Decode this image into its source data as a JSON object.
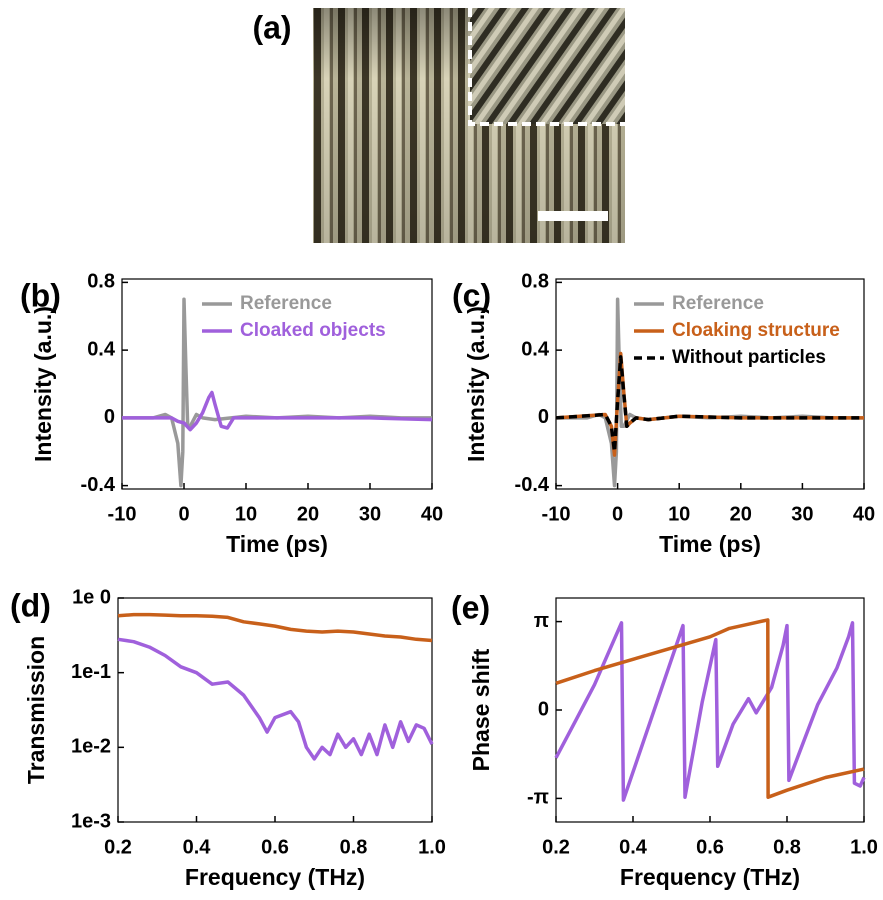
{
  "image_panel": {
    "label": "(a)"
  },
  "chart_data": [
    {
      "type": "line",
      "panel_label": "(b)",
      "xlabel": "Time (ps)",
      "ylabel": "Intensity (a.u.)",
      "xlim": [
        -10,
        40
      ],
      "xticks": [
        -10,
        0,
        10,
        20,
        30,
        40
      ],
      "ylim": [
        -0.42,
        0.82
      ],
      "yticks": [
        -0.4,
        0,
        0.4,
        0.8
      ],
      "legend": "upper right",
      "series": [
        {
          "name": "Reference",
          "color": "#999999",
          "x": [
            -10,
            -5,
            -3,
            -2,
            -1,
            -0.5,
            -0.2,
            0,
            0.3,
            0.6,
            1,
            2,
            3,
            5,
            10,
            15,
            20,
            25,
            30,
            35,
            40
          ],
          "values": [
            0,
            0,
            0.02,
            0,
            -0.15,
            -0.4,
            -0.2,
            0.7,
            0.3,
            -0.05,
            -0.05,
            0.02,
            0,
            -0.01,
            0.01,
            0,
            0.01,
            0,
            0.01,
            0,
            0
          ]
        },
        {
          "name": "Cloaked objects",
          "color": "#a060dc",
          "x": [
            -10,
            -2,
            -1,
            0,
            1,
            2,
            3,
            4,
            4.5,
            5,
            6,
            7,
            8,
            10,
            20,
            30,
            40
          ],
          "values": [
            0,
            0,
            -0.02,
            -0.03,
            -0.07,
            -0.03,
            0.03,
            0.12,
            0.15,
            0.08,
            -0.05,
            -0.06,
            0,
            0,
            0,
            0,
            -0.01
          ]
        }
      ]
    },
    {
      "type": "line",
      "panel_label": "(c)",
      "xlabel": "Time (ps)",
      "ylabel": "Intensity (a.u.)",
      "xlim": [
        -10,
        40
      ],
      "xticks": [
        -10,
        0,
        10,
        20,
        30,
        40
      ],
      "ylim": [
        -0.42,
        0.82
      ],
      "yticks": [
        -0.4,
        0,
        0.4,
        0.8
      ],
      "legend": "upper right",
      "series": [
        {
          "name": "Reference",
          "color": "#999999",
          "x": [
            -10,
            -5,
            -3,
            -2,
            -1,
            -0.5,
            -0.2,
            0,
            0.3,
            0.6,
            1,
            2,
            3,
            5,
            10,
            15,
            20,
            25,
            30,
            35,
            40
          ],
          "values": [
            0,
            0,
            0.02,
            0,
            -0.15,
            -0.4,
            -0.2,
            0.7,
            0.3,
            -0.05,
            -0.05,
            0.02,
            0,
            -0.01,
            0.01,
            0,
            0.01,
            0,
            0.01,
            0,
            0
          ]
        },
        {
          "name": "Cloaking structure",
          "color": "#c8601a",
          "x": [
            -10,
            -2,
            -1,
            -0.5,
            0,
            0.5,
            1,
            1.5,
            2,
            3,
            5,
            10,
            20,
            30,
            40
          ],
          "values": [
            0,
            0.02,
            -0.05,
            -0.22,
            0.1,
            0.38,
            0.15,
            -0.05,
            -0.03,
            0,
            -0.01,
            0.01,
            0,
            0,
            0
          ]
        },
        {
          "name": "Without particles",
          "color": "#000000",
          "linestyle": "dashed",
          "x": [
            -10,
            -2,
            -1,
            -0.5,
            0,
            0.5,
            1,
            1.5,
            2,
            3,
            5,
            10,
            20,
            30,
            40
          ],
          "values": [
            0,
            0.02,
            -0.05,
            -0.2,
            0.1,
            0.36,
            0.14,
            -0.05,
            -0.03,
            0,
            -0.01,
            0.01,
            0,
            0,
            0
          ]
        }
      ]
    },
    {
      "type": "line",
      "panel_label": "(d)",
      "xlabel": "Frequency (THz)",
      "ylabel": "Transmission",
      "xlim": [
        0.2,
        1
      ],
      "xticks": [
        0.2,
        0.4,
        0.6,
        0.8,
        {
          "value": 1,
          "label": "1.0"
        }
      ],
      "yscale": "log",
      "ylim": [
        0.001,
        1
      ],
      "yticks": [
        {
          "value": 0.001,
          "label": "1e-3"
        },
        {
          "value": 0.01,
          "label": "1e-2"
        },
        {
          "value": 0.1,
          "label": "1e-1"
        },
        {
          "value": 1,
          "label": "1e 0"
        }
      ],
      "series": [
        {
          "color": "#c8601a",
          "x": [
            0.2,
            0.24,
            0.28,
            0.32,
            0.36,
            0.4,
            0.44,
            0.48,
            0.52,
            0.56,
            0.6,
            0.64,
            0.68,
            0.72,
            0.76,
            0.8,
            0.84,
            0.88,
            0.92,
            0.96,
            1
          ],
          "values": [
            0.58,
            0.6,
            0.6,
            0.59,
            0.58,
            0.58,
            0.57,
            0.55,
            0.48,
            0.45,
            0.42,
            0.38,
            0.36,
            0.35,
            0.36,
            0.35,
            0.33,
            0.31,
            0.3,
            0.28,
            0.27
          ]
        },
        {
          "color": "#a060dc",
          "x": [
            0.2,
            0.24,
            0.28,
            0.32,
            0.36,
            0.4,
            0.44,
            0.48,
            0.52,
            0.56,
            0.58,
            0.6,
            0.64,
            0.66,
            0.68,
            0.7,
            0.72,
            0.74,
            0.76,
            0.78,
            0.8,
            0.82,
            0.84,
            0.86,
            0.88,
            0.9,
            0.92,
            0.94,
            0.96,
            0.98,
            1
          ],
          "values": [
            0.28,
            0.26,
            0.22,
            0.17,
            0.12,
            0.1,
            0.07,
            0.075,
            0.05,
            0.025,
            0.016,
            0.025,
            0.03,
            0.022,
            0.01,
            0.007,
            0.01,
            0.008,
            0.015,
            0.01,
            0.013,
            0.008,
            0.015,
            0.008,
            0.02,
            0.01,
            0.022,
            0.012,
            0.02,
            0.018,
            0.011
          ]
        }
      ]
    },
    {
      "type": "line",
      "panel_label": "(e)",
      "xlabel": "Frequency (THz)",
      "ylabel": "Phase shift",
      "xlim": [
        0.2,
        1
      ],
      "xticks": [
        0.2,
        0.4,
        0.6,
        0.8,
        {
          "value": 1,
          "label": "1.0"
        }
      ],
      "ylim": [
        -3.98,
        3.98
      ],
      "yticks": [
        {
          "value": -3.14159,
          "label": "-π"
        },
        0,
        {
          "value": 3.14159,
          "label": "π"
        }
      ],
      "series": [
        {
          "color": "#a060dc",
          "x": [
            0.2,
            0.25,
            0.3,
            0.37,
            0.375,
            0.45,
            0.53,
            0.535,
            0.58,
            0.615,
            0.62,
            0.66,
            0.7,
            0.72,
            0.76,
            0.79,
            0.8,
            0.805,
            0.83,
            0.88,
            0.93,
            0.96,
            0.97,
            0.975,
            0.99,
            1
          ],
          "values": [
            -1.7,
            -0.4,
            0.9,
            3.1,
            -3.2,
            -0.2,
            3.0,
            -3.1,
            0.3,
            2.5,
            -2.0,
            -0.5,
            0.4,
            -0.1,
            0.8,
            2.3,
            3.0,
            -2.5,
            -1.6,
            0.2,
            1.5,
            2.6,
            3.1,
            -2.6,
            -2.7,
            -2.4
          ]
        },
        {
          "color": "#c8601a",
          "x": [
            0.2,
            0.3,
            0.4,
            0.5,
            0.6,
            0.65,
            0.7,
            0.75,
            0.751,
            0.8,
            0.9,
            1
          ],
          "values": [
            0.95,
            1.4,
            1.8,
            2.2,
            2.6,
            2.9,
            3.05,
            3.2,
            -3.1,
            -2.85,
            -2.4,
            -2.1
          ]
        }
      ]
    }
  ]
}
